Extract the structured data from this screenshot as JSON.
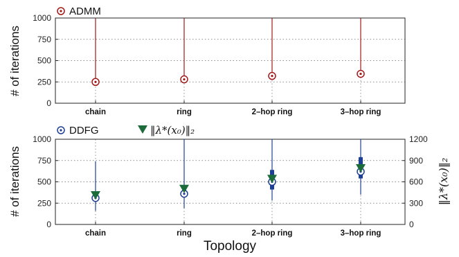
{
  "x_axis_label": "Topology",
  "colors": {
    "admm": "#a01818",
    "ddfg": "#1f3f93",
    "lambda": "#1c6b3a",
    "grid": "#555555"
  },
  "chart_data": [
    {
      "type": "errorbar",
      "categories": [
        "chain",
        "ring",
        "2–hop ring",
        "3–hop ring"
      ],
      "ylabel": "# of iterations",
      "ylim": [
        0,
        1000
      ],
      "yticks": [
        0,
        250,
        500,
        750,
        1000
      ],
      "grid": true,
      "legend_position": "top-left",
      "series": [
        {
          "name": "ADMM",
          "marker": "circle-dot",
          "color": "#a01818",
          "values": [
            250,
            280,
            320,
            345
          ],
          "whisker_low": [
            240,
            270,
            300,
            320
          ],
          "whisker_high": [
            1000,
            1000,
            1000,
            1000
          ],
          "box_low": [
            250,
            280,
            315,
            345
          ],
          "box_high": [
            260,
            310,
            335,
            380
          ]
        }
      ]
    },
    {
      "type": "errorbar",
      "categories": [
        "chain",
        "ring",
        "2–hop ring",
        "3–hop ring"
      ],
      "ylabel": "# of iterations",
      "ylim": [
        0,
        1000
      ],
      "yticks": [
        0,
        250,
        500,
        750,
        1000
      ],
      "y2label": "||λ*(x₀)||₂",
      "y2lim": [
        0,
        1200
      ],
      "y2ticks": [
        0,
        300,
        600,
        900,
        1200
      ],
      "grid": true,
      "legend_position": "top-left",
      "series": [
        {
          "name": "DDFG",
          "marker": "circle-dot",
          "color": "#1f3f93",
          "values": [
            310,
            360,
            500,
            620
          ],
          "whisker_low": [
            160,
            190,
            280,
            350
          ],
          "whisker_high": [
            740,
            1000,
            1000,
            1000
          ],
          "box_low": [
            290,
            330,
            410,
            540
          ],
          "box_high": [
            340,
            420,
            640,
            790
          ]
        },
        {
          "name": "||λ*(x₀)||₂",
          "marker": "triangle-down",
          "color": "#1c6b3a",
          "axis": "right",
          "values": [
            410,
            500,
            640,
            790
          ]
        }
      ]
    }
  ]
}
